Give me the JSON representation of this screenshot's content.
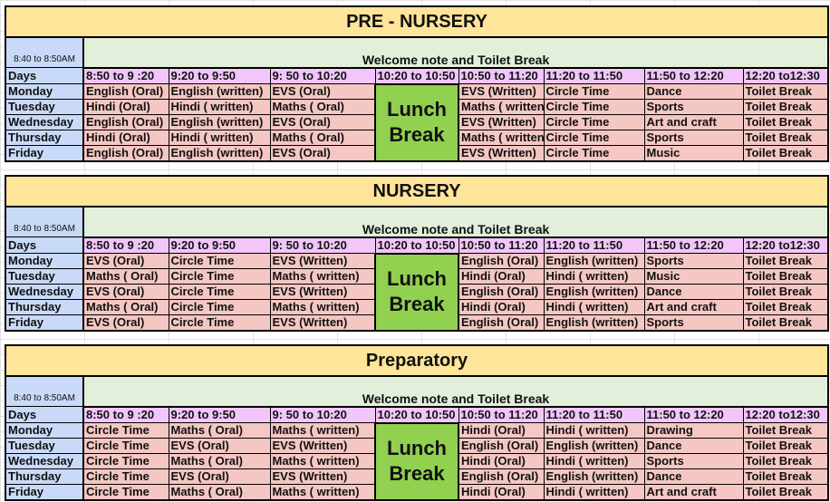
{
  "welcome_time": "8:40 to 8:50AM",
  "welcome_note": "Welcome note and Toilet Break",
  "days_label": "Days",
  "time_slots": [
    "8:50 to 9 :20",
    "9:20 to 9:50",
    "9: 50 to 10:20",
    "10:20 to 10:50",
    "10:50 to 11:20",
    "11:20 to 11:50",
    "11:50 to 12:20",
    "12:20 to12:30"
  ],
  "lunch_label": "Lunch Break",
  "days": [
    "Monday",
    "Tuesday",
    "Wednesday",
    "Thursday",
    "Friday"
  ],
  "colors": {
    "title": "#ffe599",
    "welcome": "#e2efda",
    "day": "#c9daf8",
    "slot": "#f2c6fa",
    "cell": "#f4c7c3",
    "lunch": "#92d050"
  },
  "sections": [
    {
      "title": "PRE - NURSERY",
      "rows": [
        [
          "English (Oral)",
          "English (written)",
          "EVS (Oral)",
          "EVS (Written)",
          "Circle Time",
          "Dance",
          "Toilet Break"
        ],
        [
          "Hindi (Oral)",
          "Hindi ( written)",
          "Maths ( Oral)",
          "Maths ( written)",
          "Circle Time",
          "Sports",
          "Toilet Break"
        ],
        [
          "English (Oral)",
          "English (written)",
          "EVS (Oral)",
          "EVS (Written)",
          "Circle Time",
          "Art and craft",
          "Toilet Break"
        ],
        [
          "Hindi (Oral)",
          "Hindi ( written)",
          "Maths ( Oral)",
          "Maths ( written)",
          "Circle Time",
          "Sports",
          "Toilet Break"
        ],
        [
          "English (Oral)",
          "English (written)",
          "EVS (Oral)",
          "EVS (Written)",
          "Circle Time",
          "Music",
          "Toilet Break"
        ]
      ]
    },
    {
      "title": "NURSERY",
      "rows": [
        [
          "EVS (Oral)",
          "Circle Time",
          "EVS (Written)",
          "English (Oral)",
          "English (written)",
          "Sports",
          "Toilet Break"
        ],
        [
          "Maths ( Oral)",
          "Circle Time",
          "Maths ( written)",
          "Hindi (Oral)",
          "Hindi ( written)",
          "Music",
          "Toilet Break"
        ],
        [
          "EVS (Oral)",
          "Circle Time",
          "EVS (Written)",
          "English (Oral)",
          "English (written)",
          "Dance",
          "Toilet Break"
        ],
        [
          "Maths ( Oral)",
          "Circle Time",
          "Maths ( written)",
          "Hindi (Oral)",
          "Hindi ( written)",
          "Art and craft",
          "Toilet Break"
        ],
        [
          "EVS (Oral)",
          "Circle Time",
          "EVS (Written)",
          "English (Oral)",
          "English (written)",
          "Sports",
          "Toilet Break"
        ]
      ]
    },
    {
      "title": "Preparatory",
      "rows": [
        [
          "Circle Time",
          "Maths ( Oral)",
          "Maths ( written)",
          "Hindi (Oral)",
          "Hindi ( written)",
          "Drawing",
          "Toilet Break"
        ],
        [
          "Circle Time",
          "EVS (Oral)",
          "EVS (Written)",
          "English (Oral)",
          "English (written)",
          "Dance",
          "Toilet Break"
        ],
        [
          "Circle Time",
          "Maths ( Oral)",
          "Maths ( written)",
          "Hindi (Oral)",
          "Hindi ( written)",
          "Sports",
          "Toilet Break"
        ],
        [
          "Circle Time",
          "EVS (Oral)",
          "EVS (Written)",
          "English (Oral)",
          "English (written)",
          "Dance",
          "Toilet Break"
        ],
        [
          "Circle Time",
          "Maths ( Oral)",
          "Maths ( written)",
          "Hindi (Oral)",
          "Hindi ( written)",
          "Art and craft",
          "Toilet Break"
        ]
      ]
    }
  ]
}
